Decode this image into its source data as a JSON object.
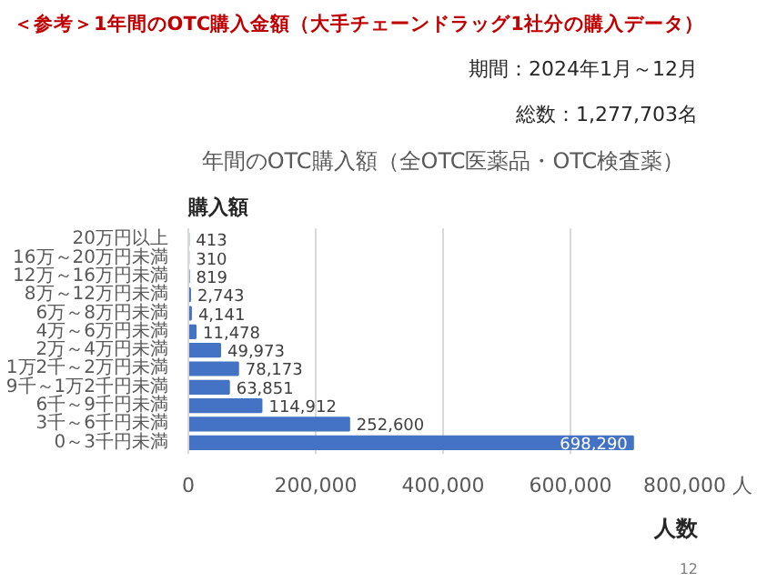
{
  "chart_data": {
    "type": "bar",
    "orientation": "horizontal",
    "title": "＜参考＞1年間のOTC購入金額（大手チェーンドラッグ1社分の購入データ）",
    "subtitle": "年間のOTC購入額（全OTC医薬品・OTC検査薬）",
    "annotations": [
      "期間：2024年1月～12月",
      "総数：1,277,703名",
      "12"
    ],
    "ylabel": "購入額",
    "xlabel": "人数",
    "categories": [
      "20万円以上",
      "16万～20万円未満",
      "12万～16万円未満",
      "8万～12万円未満",
      "6万～8万円未満",
      "4万～6万円未満",
      "2万～4万円未満",
      "1万2千～2万円未満",
      "9千～1万2千円未満",
      "6千～9千円未満",
      "3千～6千円未満",
      "0～3千円未満"
    ],
    "values": [
      413,
      310,
      819,
      2743,
      4141,
      11478,
      49973,
      78173,
      63851,
      114912,
      252600,
      698290
    ],
    "color": "#4472c4",
    "xlim": [
      0,
      800000
    ],
    "value_labels": [
      "413",
      "310",
      "819",
      "2,743",
      "4,141",
      "11,478",
      "49,973",
      "78,173",
      "63,851",
      "114,912",
      "252,600",
      "698,290"
    ],
    "xticks": [
      0,
      {
        "value": 200000,
        "label": "200,000"
      },
      {
        "value": 400000,
        "label": "400,000"
      },
      {
        "value": 600000,
        "label": "600,000"
      },
      {
        "value": 800000,
        "label": "800,000 人"
      }
    ],
    "grid": "x"
  }
}
